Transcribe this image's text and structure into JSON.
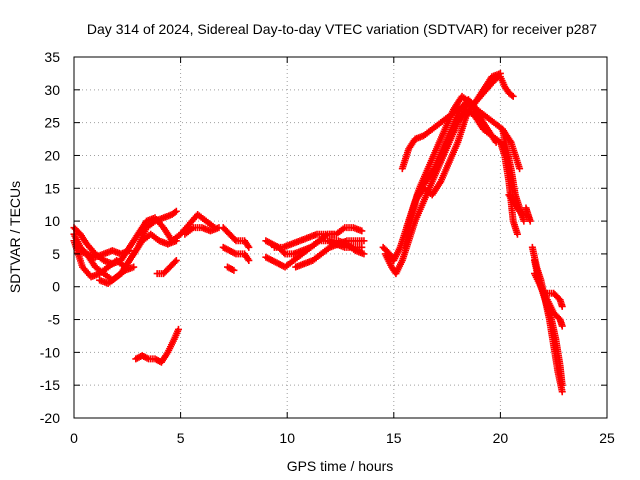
{
  "chart_data": {
    "type": "scatter",
    "title": "Day 314 of 2024, Sidereal Day-to-day VTEC variation (SDTVAR) for receiver p287",
    "xlabel": "GPS time / hours",
    "ylabel": "SDTVAR / TECUs",
    "xlim": [
      0,
      25
    ],
    "ylim": [
      -20,
      35
    ],
    "xticks": [
      0,
      5,
      10,
      15,
      20,
      25
    ],
    "yticks": [
      -20,
      -15,
      -10,
      -5,
      0,
      5,
      10,
      15,
      20,
      25,
      30,
      35
    ],
    "grid": true,
    "marker": "+",
    "color": "#ff0000",
    "series": [
      {
        "name": "track-a",
        "points": [
          [
            0,
            9
          ],
          [
            0.3,
            8
          ],
          [
            0.6,
            6.5
          ],
          [
            1,
            5
          ],
          [
            1.4,
            4
          ],
          [
            1.8,
            3.5
          ],
          [
            2.2,
            4
          ],
          [
            2.6,
            6
          ],
          [
            3,
            8
          ],
          [
            3.4,
            10
          ],
          [
            3.8,
            10.5
          ],
          [
            4.2,
            9
          ],
          [
            4.6,
            7
          ],
          [
            5.0,
            8
          ],
          [
            5.4,
            9.5
          ],
          [
            5.8,
            11
          ],
          [
            6.2,
            10
          ],
          [
            6.6,
            9
          ]
        ]
      },
      {
        "name": "track-b",
        "points": [
          [
            0,
            8
          ],
          [
            0.3,
            6
          ],
          [
            0.6,
            5
          ],
          [
            1,
            3
          ],
          [
            1.4,
            2
          ],
          [
            1.8,
            1
          ],
          [
            2.2,
            2
          ],
          [
            2.6,
            4
          ],
          [
            3,
            6
          ],
          [
            3.4,
            9
          ],
          [
            3.8,
            10
          ],
          [
            4.2,
            10.5
          ],
          [
            4.6,
            11
          ],
          [
            4.8,
            11.5
          ]
        ]
      },
      {
        "name": "track-c",
        "points": [
          [
            0,
            7
          ],
          [
            0.4,
            3
          ],
          [
            0.8,
            1.5
          ],
          [
            1.2,
            2
          ],
          [
            1.6,
            3
          ],
          [
            2.0,
            4
          ],
          [
            2.4,
            3
          ],
          [
            2.8,
            5
          ],
          [
            3.2,
            7
          ],
          [
            3.6,
            8
          ],
          [
            4.0,
            7
          ],
          [
            4.4,
            6.5
          ],
          [
            4.8,
            7
          ]
        ]
      },
      {
        "name": "track-d",
        "points": [
          [
            0.2,
            5.5
          ],
          [
            0.6,
            5
          ],
          [
            1,
            4.5
          ],
          [
            1.4,
            5
          ],
          [
            1.8,
            5.5
          ],
          [
            2.2,
            5
          ],
          [
            2.6,
            5.5
          ]
        ]
      },
      {
        "name": "track-e",
        "points": [
          [
            1.2,
            1
          ],
          [
            1.6,
            0.5
          ],
          [
            2.0,
            1.5
          ],
          [
            2.4,
            2.5
          ],
          [
            2.8,
            3
          ]
        ]
      },
      {
        "name": "track-f",
        "points": [
          [
            3.9,
            2
          ],
          [
            4.2,
            2
          ],
          [
            4.5,
            3
          ],
          [
            4.8,
            4
          ]
        ]
      },
      {
        "name": "track-g",
        "points": [
          [
            2.9,
            -11
          ],
          [
            3.2,
            -10.5
          ],
          [
            3.5,
            -11
          ],
          [
            3.8,
            -11
          ],
          [
            4.1,
            -11.5
          ],
          [
            4.4,
            -10
          ],
          [
            4.7,
            -8
          ],
          [
            4.9,
            -6.5
          ]
        ]
      },
      {
        "name": "track-h",
        "points": [
          [
            5.2,
            8
          ],
          [
            5.6,
            9
          ],
          [
            6.0,
            9
          ],
          [
            6.4,
            8.5
          ],
          [
            6.8,
            9
          ]
        ]
      },
      {
        "name": "track-i",
        "points": [
          [
            7,
            9
          ],
          [
            7.3,
            8
          ],
          [
            7.6,
            7
          ],
          [
            8,
            7
          ],
          [
            8.2,
            6
          ]
        ]
      },
      {
        "name": "track-j",
        "points": [
          [
            7,
            6
          ],
          [
            7.3,
            5.5
          ],
          [
            7.6,
            5
          ],
          [
            8,
            5
          ],
          [
            8.2,
            4
          ]
        ]
      },
      {
        "name": "track-k",
        "points": [
          [
            7.2,
            3
          ],
          [
            7.5,
            2.5
          ]
        ]
      },
      {
        "name": "track-l",
        "points": [
          [
            9,
            7
          ],
          [
            9.3,
            6.5
          ],
          [
            9.6,
            6
          ],
          [
            9.9,
            5
          ],
          [
            10.3,
            5
          ],
          [
            10.7,
            5.5
          ],
          [
            11.1,
            6
          ],
          [
            11.5,
            7
          ],
          [
            11.9,
            7
          ],
          [
            12.3,
            6.5
          ],
          [
            12.7,
            6
          ],
          [
            13.1,
            6
          ],
          [
            13.5,
            6
          ]
        ]
      },
      {
        "name": "track-m",
        "points": [
          [
            9,
            4.5
          ],
          [
            9.3,
            4
          ],
          [
            9.6,
            3.5
          ],
          [
            9.9,
            3
          ],
          [
            10.3,
            4
          ],
          [
            10.7,
            5
          ],
          [
            11.1,
            6
          ],
          [
            11.5,
            7
          ],
          [
            11.9,
            8
          ],
          [
            12.3,
            8
          ],
          [
            12.7,
            9
          ],
          [
            13.1,
            9
          ],
          [
            13.5,
            8.5
          ]
        ]
      },
      {
        "name": "track-n",
        "points": [
          [
            9.4,
            6
          ],
          [
            9.8,
            6
          ],
          [
            10.2,
            6.5
          ],
          [
            10.6,
            7
          ],
          [
            11.0,
            7.5
          ],
          [
            11.4,
            8
          ],
          [
            11.8,
            8
          ],
          [
            12.2,
            8
          ]
        ]
      },
      {
        "name": "track-o",
        "points": [
          [
            10.4,
            3
          ],
          [
            10.8,
            3.5
          ],
          [
            11.2,
            4
          ],
          [
            11.6,
            5
          ],
          [
            12.0,
            6
          ],
          [
            12.4,
            6.5
          ],
          [
            12.8,
            7
          ],
          [
            13.2,
            7
          ],
          [
            13.6,
            7
          ]
        ]
      },
      {
        "name": "track-p",
        "points": [
          [
            12,
            7
          ],
          [
            12.4,
            7
          ],
          [
            12.8,
            6.5
          ],
          [
            13.2,
            5.5
          ],
          [
            13.6,
            5
          ]
        ]
      },
      {
        "name": "track-q",
        "points": [
          [
            14.5,
            6
          ],
          [
            14.8,
            5
          ],
          [
            15.0,
            4
          ],
          [
            15.3,
            6
          ],
          [
            15.6,
            9
          ],
          [
            15.9,
            12
          ],
          [
            16.2,
            15
          ],
          [
            16.6,
            18
          ],
          [
            17.0,
            21
          ],
          [
            17.4,
            24
          ],
          [
            17.8,
            27
          ],
          [
            18.2,
            29
          ],
          [
            18.6,
            28
          ],
          [
            19.0,
            26
          ],
          [
            19.4,
            24
          ],
          [
            19.8,
            22
          ]
        ]
      },
      {
        "name": "track-r",
        "points": [
          [
            14.6,
            5
          ],
          [
            14.9,
            3
          ],
          [
            15.1,
            2
          ],
          [
            15.4,
            4
          ],
          [
            15.7,
            7
          ],
          [
            16.0,
            10
          ],
          [
            16.4,
            13
          ],
          [
            16.8,
            16
          ],
          [
            17.2,
            19
          ],
          [
            17.6,
            22
          ],
          [
            18.0,
            25
          ],
          [
            18.4,
            27
          ],
          [
            18.8,
            26
          ],
          [
            19.2,
            24
          ],
          [
            19.6,
            23
          ],
          [
            20.0,
            22
          ]
        ]
      },
      {
        "name": "track-s",
        "points": [
          [
            15.5,
            6
          ],
          [
            15.8,
            10
          ],
          [
            16.1,
            14
          ],
          [
            16.5,
            16
          ],
          [
            16.9,
            18
          ],
          [
            17.3,
            21
          ],
          [
            17.7,
            24
          ],
          [
            18.1,
            27
          ],
          [
            18.5,
            28.5
          ],
          [
            18.9,
            27
          ],
          [
            19.3,
            26
          ],
          [
            19.7,
            25
          ],
          [
            20.1,
            24
          ],
          [
            20.5,
            22
          ],
          [
            20.9,
            18
          ]
        ]
      },
      {
        "name": "track-t",
        "points": [
          [
            15.6,
            9
          ],
          [
            16.0,
            13
          ],
          [
            16.4,
            15
          ],
          [
            16.8,
            14
          ],
          [
            17.2,
            16
          ],
          [
            17.6,
            19
          ],
          [
            18.0,
            22
          ],
          [
            18.4,
            26
          ],
          [
            18.8,
            28
          ],
          [
            19.2,
            30
          ],
          [
            19.6,
            32
          ],
          [
            20.0,
            32.5
          ]
        ]
      },
      {
        "name": "track-u",
        "points": [
          [
            15.4,
            18
          ],
          [
            15.7,
            21
          ],
          [
            16.0,
            22.5
          ],
          [
            16.4,
            23
          ],
          [
            16.8,
            24
          ],
          [
            17.2,
            25
          ],
          [
            17.6,
            26
          ],
          [
            18.0,
            27
          ],
          [
            18.4,
            27.5
          ],
          [
            18.8,
            28
          ],
          [
            19.2,
            29.5
          ],
          [
            19.6,
            31
          ],
          [
            19.9,
            32
          ]
        ]
      },
      {
        "name": "track-v",
        "points": [
          [
            20.0,
            32
          ],
          [
            20.2,
            30.5
          ],
          [
            20.4,
            29.5
          ],
          [
            20.6,
            29
          ]
        ]
      },
      {
        "name": "track-w",
        "points": [
          [
            20.1,
            24
          ],
          [
            20.3,
            21
          ],
          [
            20.5,
            18
          ],
          [
            20.7,
            14
          ],
          [
            20.9,
            12
          ],
          [
            21.1,
            10
          ]
        ]
      },
      {
        "name": "track-x",
        "points": [
          [
            20.0,
            22
          ],
          [
            20.2,
            20
          ],
          [
            20.4,
            16
          ],
          [
            20.6,
            10
          ],
          [
            20.8,
            8
          ]
        ]
      },
      {
        "name": "track-y",
        "points": [
          [
            20.4,
            14
          ],
          [
            20.6,
            13
          ],
          [
            20.8,
            12
          ],
          [
            21.0,
            11
          ],
          [
            21.2,
            11
          ]
        ]
      },
      {
        "name": "track-z",
        "points": [
          [
            21.2,
            12
          ],
          [
            21.3,
            11
          ],
          [
            21.4,
            10
          ]
        ]
      },
      {
        "name": "track-aa",
        "points": [
          [
            21.5,
            6
          ],
          [
            21.7,
            3
          ],
          [
            21.9,
            1
          ],
          [
            22.1,
            -2
          ],
          [
            22.3,
            -5
          ],
          [
            22.5,
            -9
          ],
          [
            22.7,
            -13
          ],
          [
            22.9,
            -16
          ]
        ]
      },
      {
        "name": "track-ab",
        "points": [
          [
            21.6,
            4
          ],
          [
            21.8,
            1
          ],
          [
            22.0,
            -1
          ],
          [
            22.2,
            -3
          ],
          [
            22.4,
            -5
          ],
          [
            22.6,
            -8
          ],
          [
            22.8,
            -12
          ],
          [
            22.9,
            -15
          ]
        ]
      },
      {
        "name": "track-ac",
        "points": [
          [
            21.6,
            2
          ],
          [
            21.9,
            0
          ],
          [
            22.2,
            -2
          ],
          [
            22.5,
            -4
          ],
          [
            22.8,
            -5
          ],
          [
            22.9,
            -6
          ]
        ]
      },
      {
        "name": "track-ad",
        "points": [
          [
            22.2,
            -1
          ],
          [
            22.5,
            -1
          ],
          [
            22.8,
            -2
          ],
          [
            22.9,
            -3
          ]
        ]
      }
    ]
  }
}
